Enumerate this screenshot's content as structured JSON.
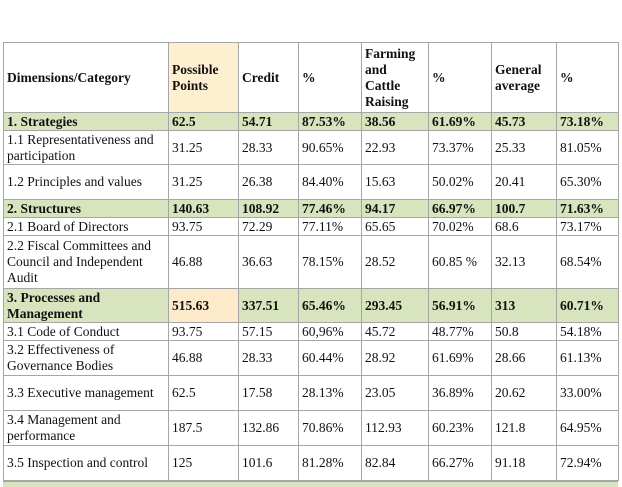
{
  "table": {
    "header": [
      "Dimensions/Category",
      "Possible Points",
      "Credit",
      "%",
      "Farming and Cattle Raising",
      "%",
      "General average",
      "%"
    ],
    "rows": [
      [
        "1. Strategies",
        "62.5",
        "54.71",
        "87.53%",
        "38.56",
        "61.69%",
        "45.73",
        "73.18%"
      ],
      [
        "1.1 Representativeness and participation",
        "31.25",
        "28.33",
        "90.65%",
        "22.93",
        "73.37%",
        "25.33",
        "81.05%"
      ],
      [
        "1.2 Principles and values",
        "31.25",
        "26.38",
        "84.40%",
        "15.63",
        "50.02%",
        "20.41",
        "65.30%"
      ],
      [
        "2. Structures",
        "140.63",
        "108.92",
        "77.46%",
        "94.17",
        "66.97%",
        "100.7",
        "71.63%"
      ],
      [
        "2.1 Board of Directors",
        "93.75",
        "72.29",
        "77.11%",
        "65.65",
        "70.02%",
        "68.6",
        "73.17%"
      ],
      [
        "2.2 Fiscal Committees and Council and Independent Audit",
        "46.88",
        "36.63",
        "78.15%",
        "28.52",
        "60.85 %",
        "32.13",
        "68.54%"
      ],
      [
        "3. Processes and Management",
        "515.63",
        "337.51",
        "65.46%",
        "293.45",
        "56.91%",
        "313",
        "60.71%"
      ],
      [
        "3.1 Code of Conduct",
        "93.75",
        "57.15",
        "60,96%",
        "45.72",
        "48.77%",
        "50.8",
        "54.18%"
      ],
      [
        "3.2 Effectiveness of Governance Bodies",
        "46.88",
        "28.33",
        "60.44%",
        "28.92",
        "61.69%",
        "28.66",
        "61.13%"
      ],
      [
        "3.3 Executive management",
        "62.5",
        "17.58",
        "28.13%",
        "23.05",
        "36.89%",
        "20.62",
        "33.00%"
      ],
      [
        "3.4 Management and performance",
        "187.5",
        "132.86",
        "70.86%",
        "112.93",
        "60.23%",
        "121.8",
        "64.95%"
      ],
      [
        "3.5 Inspection and control",
        "125",
        "101.6",
        "81.28%",
        "82.84",
        "66.27%",
        "91.18",
        "72.94%"
      ]
    ]
  }
}
